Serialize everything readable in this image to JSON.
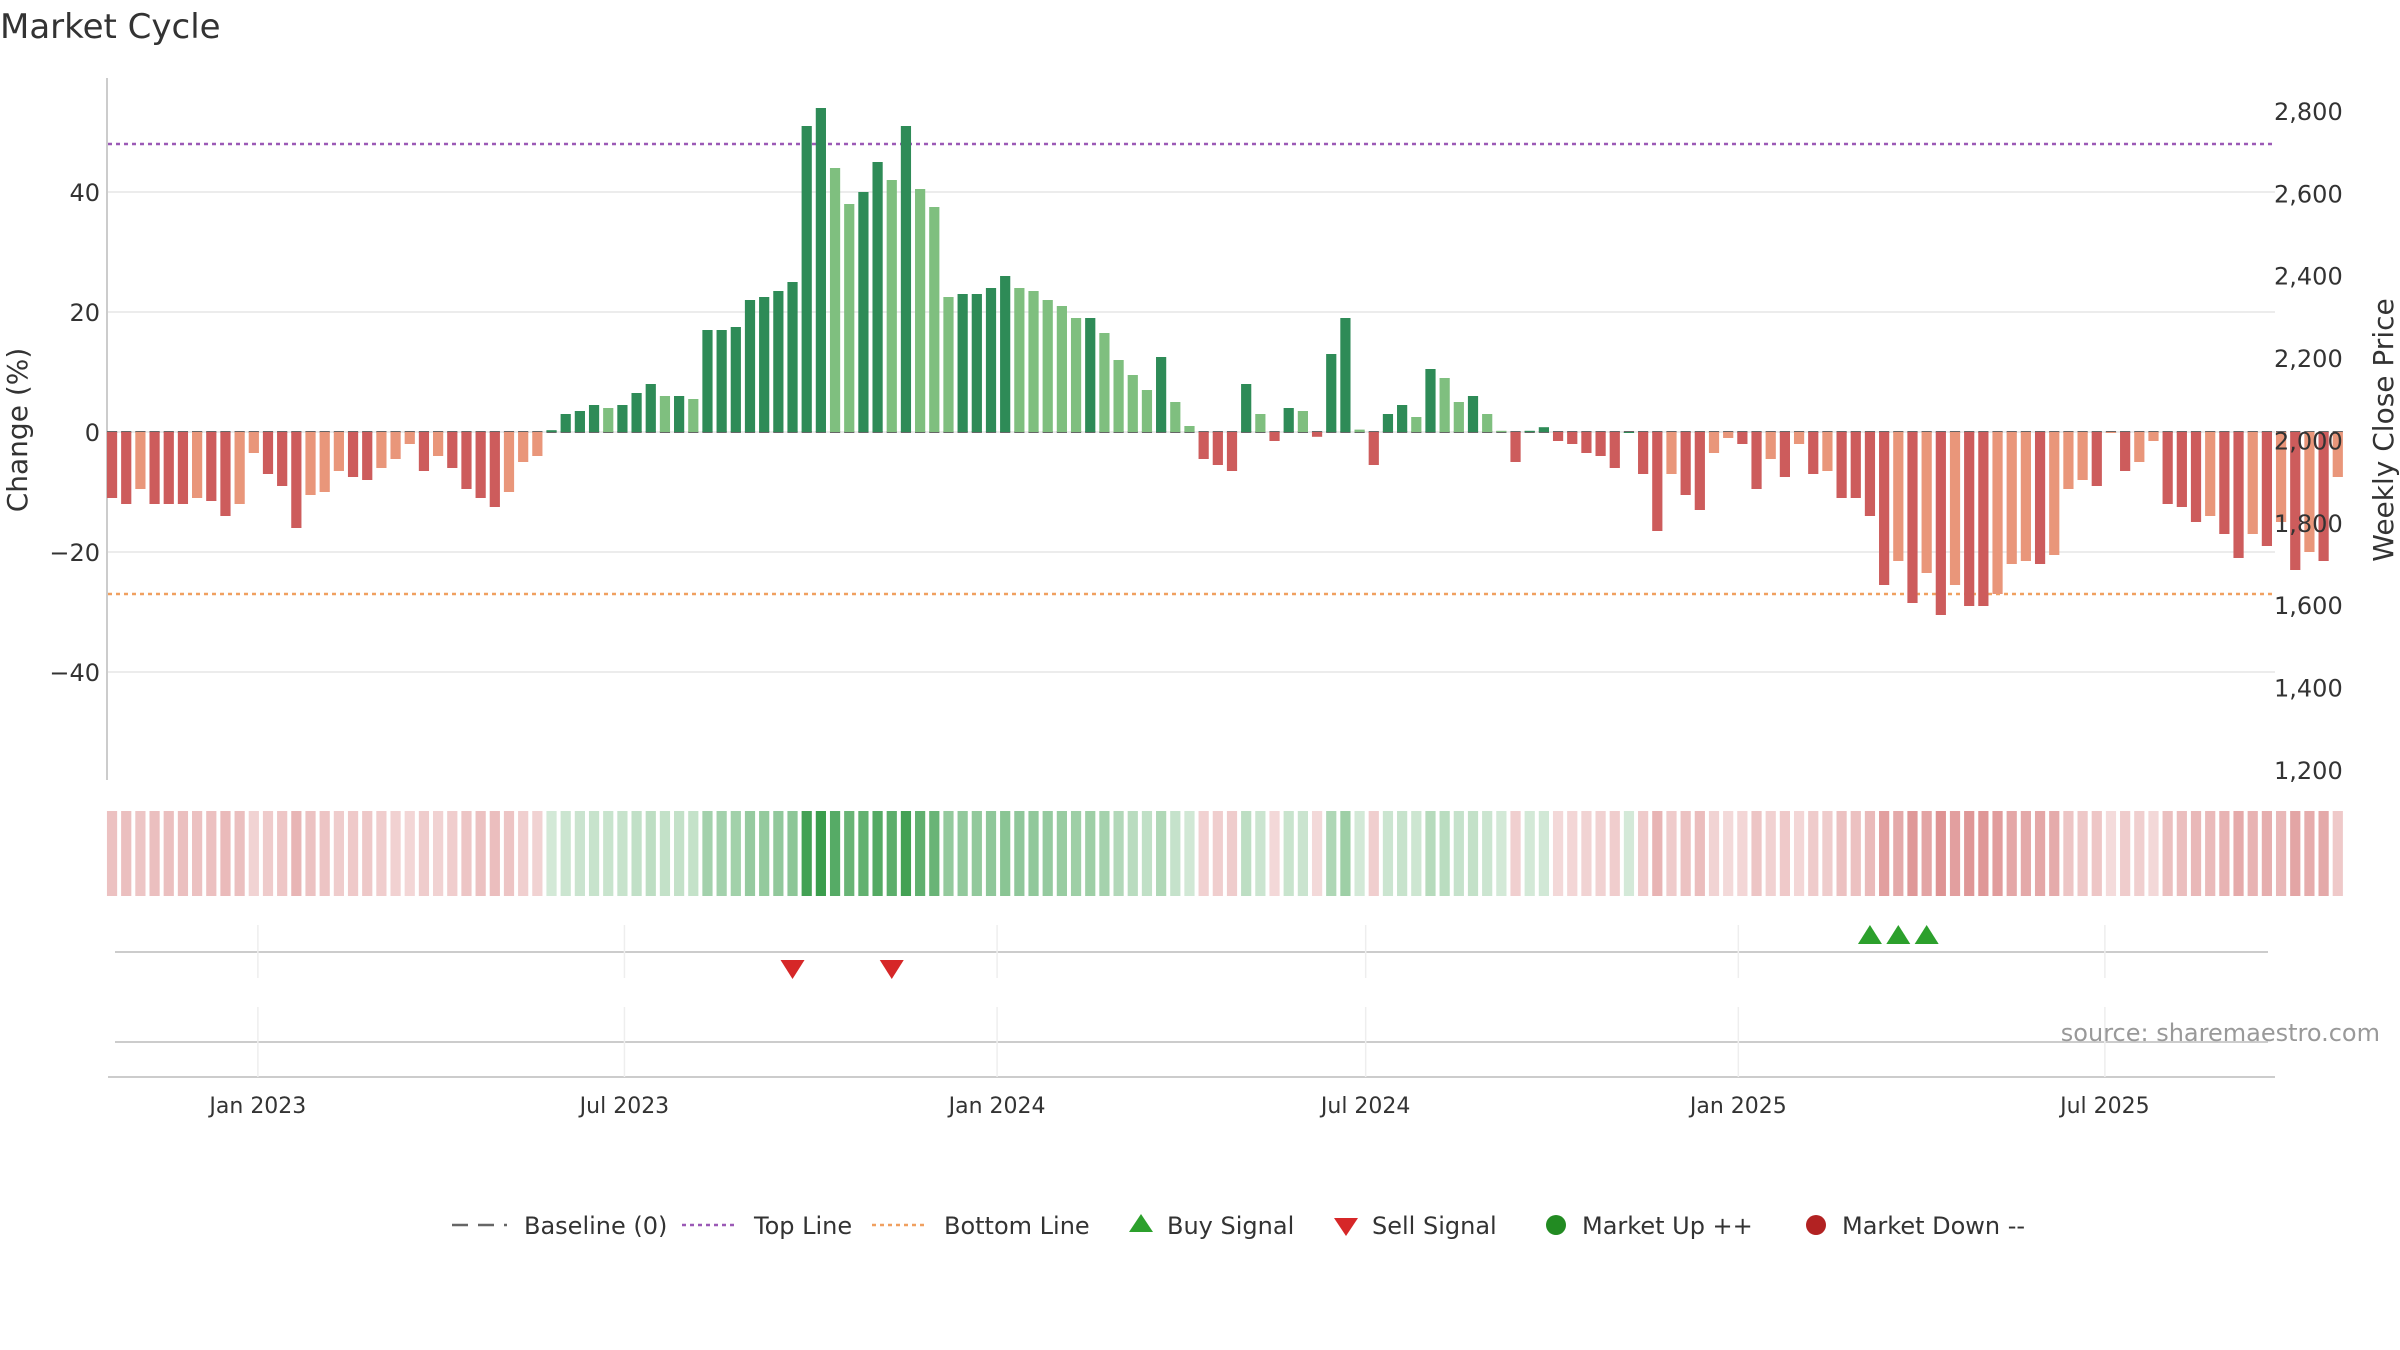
{
  "chart_data": {
    "type": "bar",
    "title": "Market Cycle",
    "ylabel": "Change (%)",
    "y2label": "Weekly Close Price",
    "ylim": [
      -58,
      59
    ],
    "y2lim": [
      1200,
      2880
    ],
    "yticks": [
      -40,
      -20,
      0,
      20,
      40
    ],
    "yticklabels": [
      "−40",
      "−20",
      "0",
      "20",
      "40"
    ],
    "y2ticks": [
      1200,
      1400,
      1600,
      1800,
      2000,
      2200,
      2400,
      2600,
      2800
    ],
    "y2ticklabels": [
      "1,200",
      "1,400",
      "1,600",
      "1,800",
      "2,000",
      "2,200",
      "2,400",
      "2,600",
      "2,800"
    ],
    "xlim": [
      "2022-10-19",
      "2025-09-23"
    ],
    "x_ticks": [
      {
        "date": "2023-01-01",
        "label": "Jan 2023"
      },
      {
        "date": "2023-07-01",
        "label": "Jul 2023"
      },
      {
        "date": "2024-01-01",
        "label": "Jan 2024"
      },
      {
        "date": "2024-07-01",
        "label": "Jul 2024"
      },
      {
        "date": "2025-01-01",
        "label": "Jan 2025"
      },
      {
        "date": "2025-07-01",
        "label": "Jul 2025"
      }
    ],
    "start_date": "2022-10-21",
    "week_step_days": 7,
    "top_line": 48,
    "bottom_line": -27,
    "baseline": 0,
    "values": [
      -11,
      -12,
      -9.5,
      -12,
      -12,
      -12,
      -11,
      -11.5,
      -14,
      -12,
      -3.5,
      -7,
      -9,
      -16,
      -10.5,
      -10,
      -6.5,
      -7.5,
      -8,
      -6,
      -4.5,
      -2,
      -6.5,
      -4,
      -6,
      -9.5,
      -11,
      -12.5,
      -10,
      -5,
      -4,
      0.3,
      3,
      3.5,
      4.5,
      4,
      4.5,
      6.5,
      8,
      6,
      6,
      5.5,
      17,
      17,
      17.5,
      22,
      22.5,
      23.5,
      25,
      51,
      54,
      44,
      38,
      40,
      45,
      42,
      51,
      40.5,
      37.5,
      22.5,
      23,
      23,
      24,
      26,
      24,
      23.5,
      22,
      21,
      19,
      19,
      16.5,
      12,
      9.5,
      7,
      12.5,
      5,
      1,
      -4.5,
      -5.5,
      -6.5,
      8,
      3,
      -1.5,
      4,
      3.5,
      -0.8,
      13,
      19,
      0.4,
      -5.5,
      3,
      4.5,
      2.5,
      10.5,
      9,
      5,
      6,
      3,
      0.2,
      -5,
      0.2,
      0.8,
      -1.5,
      -2,
      -3.5,
      -4,
      -6,
      0,
      -7,
      -16.5,
      -7,
      -10.5,
      -13,
      -3.5,
      -1,
      -2,
      -9.5,
      -4.5,
      -7.5,
      -2,
      -7,
      -6.5,
      -11,
      -11,
      -14,
      -25.5,
      -21.5,
      -28.5,
      -23.5,
      -30.5,
      -25.5,
      -29,
      -29,
      -27,
      -22,
      -21.5,
      -22,
      -20.5,
      -9.5,
      -8,
      -9,
      -0.1,
      -6.5,
      -5,
      -1.5,
      -12,
      -12.5,
      -15,
      -14,
      -17,
      -21,
      -17,
      -19,
      -15,
      -23,
      -20,
      -21.5,
      -7.5
    ],
    "buy_signals": [
      "2025-03-07",
      "2025-03-21",
      "2025-04-04"
    ],
    "sell_signals": [
      "2023-09-22",
      "2023-11-10"
    ],
    "colors": {
      "pos_strong": "#2e8b57",
      "pos_light": "#7fbf7f",
      "neg_strong": "#cd5c5c",
      "neg_light": "#e9967a",
      "top_line": "#9b59b6",
      "bottom_line": "#f0a060",
      "buy": "#2ca02c",
      "sell": "#d62728",
      "market_up": "#228b22",
      "market_down": "#b22222",
      "heat_pos": "#3a9d4c",
      "heat_neg": "#cd5c5c"
    },
    "legend": [
      {
        "label": "Baseline (0)",
        "kind": "dash",
        "color": "#666666"
      },
      {
        "label": "Top Line",
        "kind": "dot",
        "color": "#9b59b6"
      },
      {
        "label": "Bottom Line",
        "kind": "dot",
        "color": "#f0a060"
      },
      {
        "label": "Buy Signal",
        "kind": "triangle-up",
        "color": "#2ca02c"
      },
      {
        "label": "Sell Signal",
        "kind": "triangle-down",
        "color": "#d62728"
      },
      {
        "label": "Market Up ++",
        "kind": "circle",
        "color": "#228b22"
      },
      {
        "label": "Market Down --",
        "kind": "circle",
        "color": "#b22222"
      }
    ],
    "source": "source: sharemaestro.com",
    "grid": true,
    "legend_placement": "bottom-center"
  }
}
